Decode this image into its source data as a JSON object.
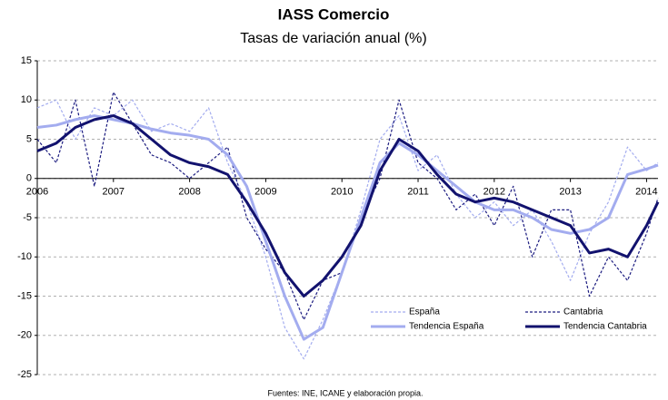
{
  "chart_data": {
    "type": "line",
    "title": "IASS Comercio",
    "subtitle": "Tasas de variación anual (%)",
    "footnote": "Fuentes: INE, ICANE y elaboración propia.",
    "x": [
      2006,
      2006.25,
      2006.5,
      2006.75,
      2007,
      2007.25,
      2007.5,
      2007.75,
      2008,
      2008.25,
      2008.5,
      2008.75,
      2009,
      2009.25,
      2009.5,
      2009.75,
      2010,
      2010.25,
      2010.5,
      2010.75,
      2011,
      2011.25,
      2011.5,
      2011.75,
      2012,
      2012.25,
      2012.5,
      2012.75,
      2013,
      2013.25,
      2013.5,
      2013.75,
      2014,
      2014.15
    ],
    "xlim": [
      2006,
      2014.15
    ],
    "xticks": [
      2006,
      2007,
      2008,
      2009,
      2010,
      2011,
      2012,
      2013,
      2014
    ],
    "ylim": [
      -25,
      15
    ],
    "yticks": [
      15,
      10,
      5,
      0,
      -5,
      -10,
      -15,
      -20,
      -25
    ],
    "grid": true,
    "legend": "lower right",
    "series": [
      {
        "name": "España",
        "color": "#a3acef",
        "style": "dashed",
        "values": [
          9,
          10,
          5,
          9,
          8,
          10,
          6,
          7,
          6,
          9,
          2,
          -3,
          -10,
          -19,
          -23,
          -18,
          -12,
          -4,
          5,
          8,
          1,
          3,
          -2,
          -5,
          -3,
          -6,
          -4,
          -8,
          -13,
          -7,
          -3,
          4,
          1,
          2
        ]
      },
      {
        "name": "Cantabria",
        "color": "#1c1c80",
        "style": "dashed",
        "values": [
          5,
          2,
          10,
          -1,
          11,
          7,
          3,
          2,
          0,
          2,
          4,
          -5,
          -9,
          -12,
          -18,
          -13,
          -12,
          -5,
          0,
          10,
          2,
          0,
          -4,
          -2,
          -6,
          -1,
          -10,
          -4,
          -4,
          -15,
          -10,
          -13,
          -7,
          -2.5
        ]
      },
      {
        "name": "Tendencia España",
        "color": "#a3acef",
        "style": "solid",
        "values": [
          6.5,
          6.8,
          7.5,
          8,
          7.5,
          7,
          6.3,
          5.8,
          5.5,
          5,
          3,
          -1,
          -8,
          -15,
          -20.5,
          -19,
          -12,
          -5,
          2,
          4.5,
          3,
          1,
          -1,
          -3,
          -4,
          -4,
          -5,
          -6.5,
          -7,
          -6.5,
          -5,
          0.5,
          1.2,
          1.7
        ]
      },
      {
        "name": "Tendencia Cantabria",
        "color": "#12126e",
        "style": "solid",
        "values": [
          3.5,
          4.5,
          6.5,
          7.5,
          8,
          7,
          5,
          3,
          2,
          1.5,
          0.5,
          -3,
          -7,
          -12,
          -15,
          -13,
          -10,
          -6,
          1,
          5,
          3.5,
          0.5,
          -2,
          -3,
          -2.5,
          -3,
          -4,
          -5,
          -6,
          -9.5,
          -9,
          -10,
          -6,
          -3
        ]
      }
    ]
  }
}
